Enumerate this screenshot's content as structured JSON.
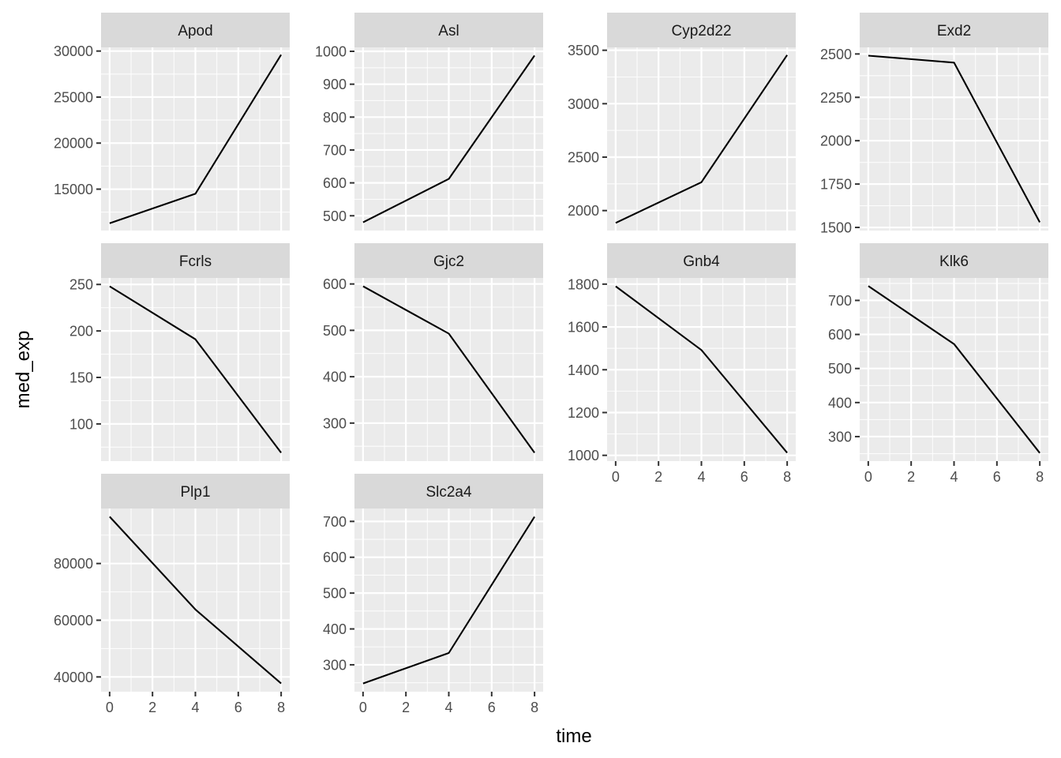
{
  "chart_data": {
    "type": "line",
    "facet_layout": "wrap 4 columns",
    "xlabel": "time",
    "ylabel": "med_exp",
    "x_ticks": [
      0,
      2,
      4,
      6,
      8
    ],
    "xlim": [
      -0.4,
      8.4
    ],
    "grid": true,
    "line_color": "#000000",
    "panel_background": "#ebebeb",
    "strip_background": "#d9d9d9",
    "panels": [
      {
        "title": "Apod",
        "x": [
          0,
          4,
          8
        ],
        "y": [
          11300,
          14500,
          29600
        ],
        "ylim": [
          10500,
          30400
        ],
        "y_ticks": [
          15000,
          20000,
          25000,
          30000
        ],
        "y_tick_labels": [
          "15000",
          "20000",
          "25000",
          "30000"
        ]
      },
      {
        "title": "Asl",
        "x": [
          0,
          4,
          8
        ],
        "y": [
          480,
          612,
          987
        ],
        "ylim": [
          455,
          1012
        ],
        "y_ticks": [
          500,
          600,
          700,
          800,
          900,
          1000
        ],
        "y_tick_labels": [
          "500",
          "600",
          "700",
          "800",
          "900",
          "1000"
        ]
      },
      {
        "title": "Cyp2d22",
        "x": [
          0,
          4,
          8
        ],
        "y": [
          1885,
          2265,
          3455
        ],
        "ylim": [
          1813,
          3527
        ],
        "y_ticks": [
          2000,
          2500,
          3000,
          3500
        ],
        "y_tick_labels": [
          "2000",
          "2500",
          "3000",
          "3500"
        ]
      },
      {
        "title": "Exd2",
        "x": [
          0,
          4,
          8
        ],
        "y": [
          2490,
          2450,
          1530
        ],
        "ylim": [
          1482,
          2538
        ],
        "y_ticks": [
          1500,
          1750,
          2000,
          2250,
          2500
        ],
        "y_tick_labels": [
          "1500",
          "1750",
          "2000",
          "2250",
          "2500"
        ]
      },
      {
        "title": "Fcrls",
        "x": [
          0,
          4,
          8
        ],
        "y": [
          248,
          191,
          69
        ],
        "ylim": [
          60,
          257
        ],
        "y_ticks": [
          100,
          150,
          200,
          250
        ],
        "y_tick_labels": [
          "100",
          "150",
          "200",
          "250"
        ]
      },
      {
        "title": "Gjc2",
        "x": [
          0,
          4,
          8
        ],
        "y": [
          595,
          493,
          236
        ],
        "ylim": [
          218,
          613
        ],
        "y_ticks": [
          300,
          400,
          500,
          600
        ],
        "y_tick_labels": [
          "300",
          "400",
          "500",
          "600"
        ]
      },
      {
        "title": "Gnb4",
        "x": [
          0,
          4,
          8
        ],
        "y": [
          1790,
          1492,
          1012
        ],
        "ylim": [
          973,
          1829
        ],
        "y_ticks": [
          1000,
          1200,
          1400,
          1600,
          1800
        ],
        "y_tick_labels": [
          "1000",
          "1200",
          "1400",
          "1600",
          "1800"
        ]
      },
      {
        "title": "Klk6",
        "x": [
          0,
          4,
          8
        ],
        "y": [
          742,
          572,
          252
        ],
        "ylim": [
          228,
          766
        ],
        "y_ticks": [
          300,
          400,
          500,
          600,
          700
        ],
        "y_tick_labels": [
          "300",
          "400",
          "500",
          "600",
          "700"
        ]
      },
      {
        "title": "Plp1",
        "x": [
          0,
          4,
          8
        ],
        "y": [
          96500,
          63800,
          37700
        ],
        "ylim": [
          34800,
          99400
        ],
        "y_ticks": [
          40000,
          60000,
          80000
        ],
        "y_tick_labels": [
          "40000",
          "60000",
          "80000"
        ]
      },
      {
        "title": "Slc2a4",
        "x": [
          0,
          4,
          8
        ],
        "y": [
          248,
          333,
          713
        ],
        "ylim": [
          225,
          736
        ],
        "y_ticks": [
          300,
          400,
          500,
          600,
          700
        ],
        "y_tick_labels": [
          "300",
          "400",
          "500",
          "600",
          "700"
        ]
      }
    ]
  }
}
